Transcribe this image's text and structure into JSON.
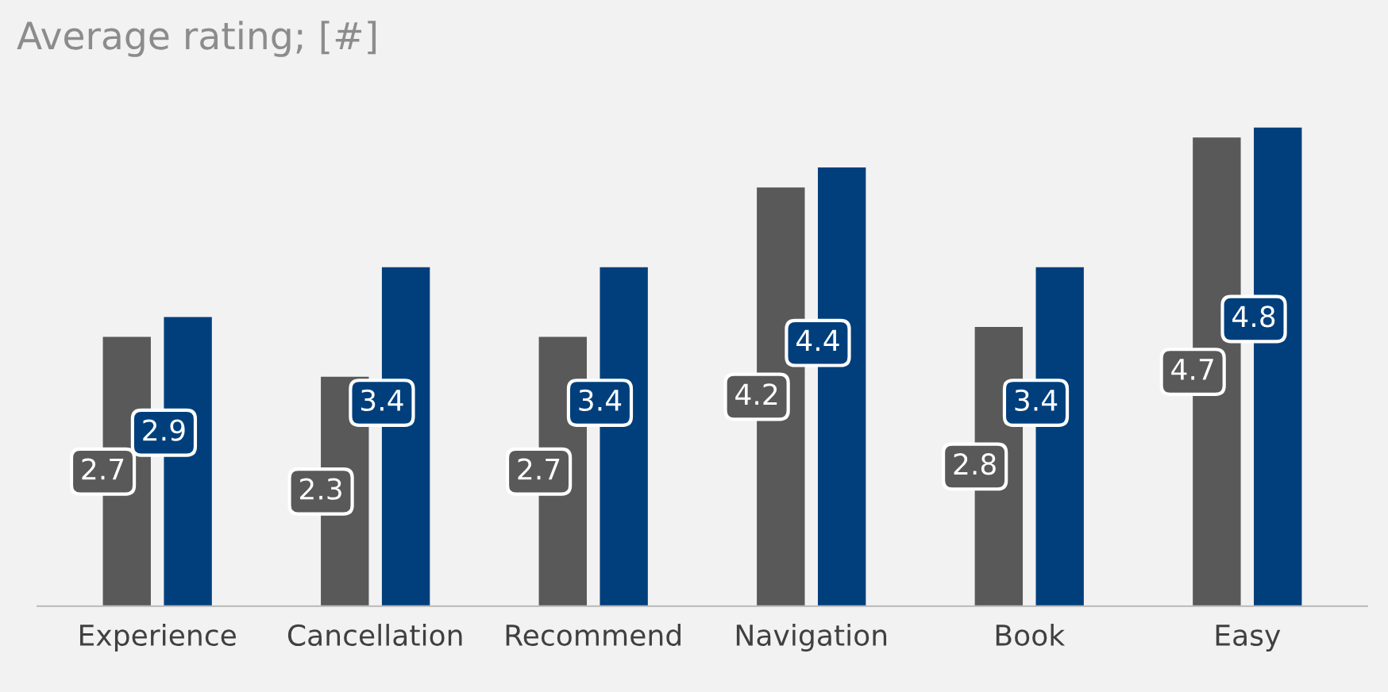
{
  "chart_data": {
    "type": "bar",
    "title": "Average rating; [#]",
    "categories": [
      "Experience",
      "Cancellation",
      "Recommend",
      "Navigation",
      "Book",
      "Easy"
    ],
    "series": [
      {
        "color": "#595959",
        "values": [
          2.7,
          2.3,
          2.7,
          4.2,
          2.8,
          4.7
        ]
      },
      {
        "color": "#003f7c",
        "values": [
          2.9,
          3.4,
          3.4,
          4.4,
          3.4,
          4.8
        ]
      }
    ],
    "data_labels": true,
    "grid": false,
    "legend": false
  }
}
